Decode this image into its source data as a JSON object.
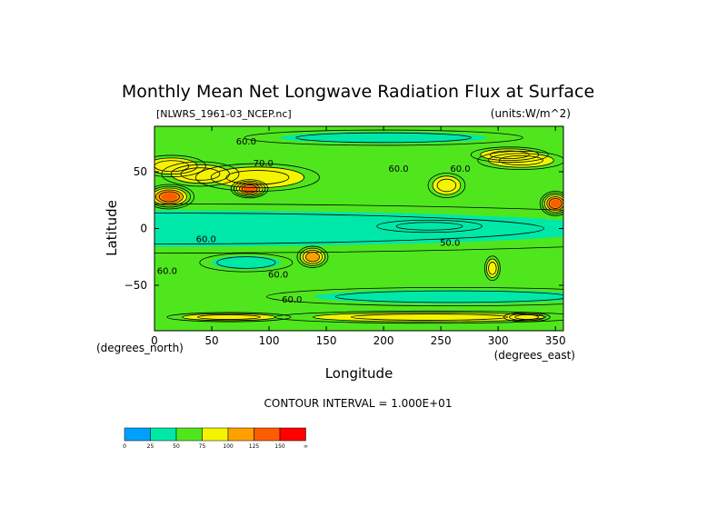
{
  "chart_data": {
    "type": "heatmap",
    "title": "Monthly Mean Net Longwave Radiation Flux at Surface",
    "dataset_label": "[NLWRS_1961-03_NCEP.nc]",
    "units_label": "(units:W/m^2)",
    "xlabel": "Longitude",
    "ylabel": "Latitude",
    "x_unit_label": "(degrees_east)",
    "y_unit_label": "(degrees_north)",
    "xlim": [
      0,
      357
    ],
    "ylim": [
      -90,
      90
    ],
    "x_ticks": [
      0,
      50,
      100,
      150,
      200,
      250,
      300,
      350
    ],
    "y_ticks": [
      50,
      0,
      -50
    ],
    "y_tick_labels": [
      "50",
      "0",
      "−50"
    ],
    "contour_interval_label": "CONTOUR INTERVAL = 1.000E+01",
    "contour_labels": [
      {
        "text": "60.0",
        "lon": 80,
        "lat": 74
      },
      {
        "text": "70.0",
        "lon": 95,
        "lat": 55
      },
      {
        "text": "60.0",
        "lon": 213,
        "lat": 50
      },
      {
        "text": "60.0",
        "lon": 267,
        "lat": 50
      },
      {
        "text": "60.0",
        "lon": 45,
        "lat": -12
      },
      {
        "text": "50.0",
        "lon": 258,
        "lat": -15
      },
      {
        "text": "60.0",
        "lon": 11,
        "lat": -40
      },
      {
        "text": "60.0",
        "lon": 108,
        "lat": -43
      },
      {
        "text": "60.0",
        "lon": 120,
        "lat": -65
      }
    ],
    "colorbar": {
      "colors": [
        "#00a0ff",
        "#00e8a8",
        "#50e61e",
        "#f4f400",
        "#ffa000",
        "#ff5c00",
        "#ff0000"
      ],
      "tick_labels": [
        "0",
        "25",
        "50",
        "75",
        "100",
        "125",
        "150",
        "∞"
      ]
    },
    "field_regions": [
      {
        "lon": 0,
        "lat": 0,
        "rlon": 400,
        "rlat": 16,
        "level": 1
      },
      {
        "lon": 240,
        "lat": 2,
        "rlon": 34,
        "rlat": 4,
        "level": 1
      },
      {
        "lon": 80,
        "lat": -30,
        "rlon": 30,
        "rlat": 6,
        "level": 1
      },
      {
        "lon": 260,
        "lat": -60,
        "rlon": 120,
        "rlat": 6,
        "level": 1
      },
      {
        "lon": 200,
        "lat": 80,
        "rlon": 90,
        "rlat": 5,
        "level": 1
      },
      {
        "lon": 15,
        "lat": 55,
        "rlon": 22,
        "rlat": 7,
        "level": 3
      },
      {
        "lon": 90,
        "lat": 45,
        "rlon": 40,
        "rlat": 9,
        "level": 3
      },
      {
        "lon": 40,
        "lat": 48,
        "rlon": 25,
        "rlat": 8,
        "level": 3
      },
      {
        "lon": 13,
        "lat": 28,
        "rlon": 16,
        "rlat": 8,
        "level": 5
      },
      {
        "lon": 83,
        "lat": 35,
        "rlon": 12,
        "rlat": 6,
        "level": 5
      },
      {
        "lon": 255,
        "lat": 38,
        "rlon": 12,
        "rlat": 8,
        "level": 3
      },
      {
        "lon": 138,
        "lat": -25,
        "rlon": 10,
        "rlat": 7,
        "level": 4
      },
      {
        "lon": 350,
        "lat": 22,
        "rlon": 10,
        "rlat": 8,
        "level": 5
      },
      {
        "lon": 295,
        "lat": -35,
        "rlon": 5,
        "rlat": 8,
        "level": 3
      },
      {
        "lon": 240,
        "lat": -78,
        "rlon": 100,
        "rlat": 4,
        "level": 3
      },
      {
        "lon": 65,
        "lat": -78,
        "rlon": 40,
        "rlat": 3,
        "level": 3
      },
      {
        "lon": 310,
        "lat": 65,
        "rlon": 25,
        "rlat": 5,
        "level": 3
      },
      {
        "lon": 320,
        "lat": 60,
        "rlon": 28,
        "rlat": 6,
        "level": 3
      },
      {
        "lon": 325,
        "lat": -78,
        "rlon": 15,
        "rlat": 3,
        "level": 3
      }
    ]
  }
}
